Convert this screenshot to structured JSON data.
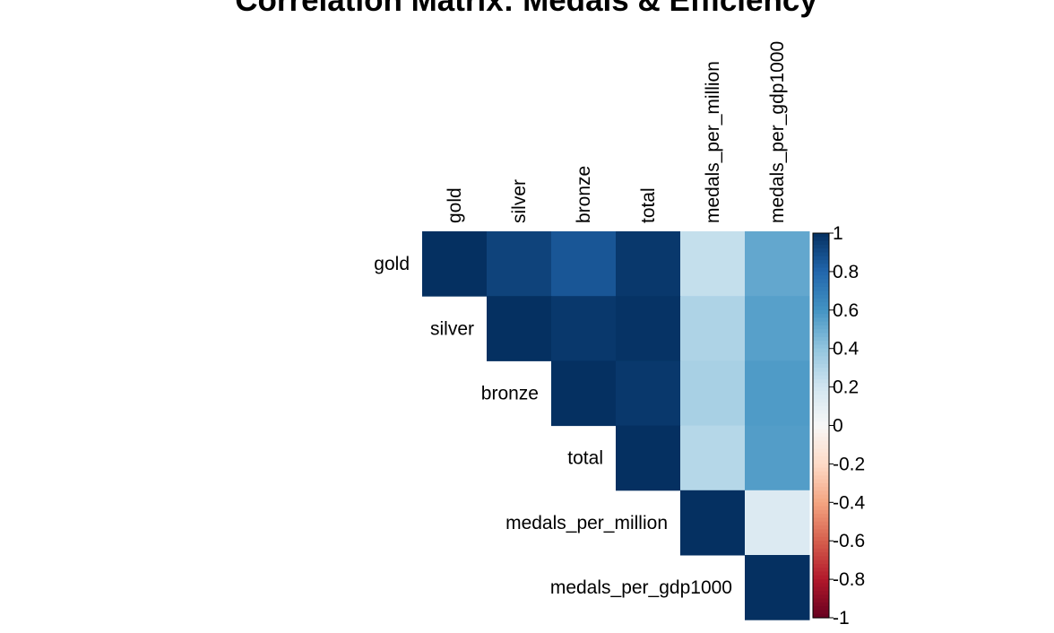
{
  "chart_data": {
    "type": "heatmap",
    "title": "Correlation Matrix: Medals & Efficiency",
    "matrix_shape": "upper-triangle",
    "variables": [
      "gold",
      "silver",
      "bronze",
      "total",
      "medals_per_million",
      "medals_per_gdp1000"
    ],
    "values": [
      [
        1.0,
        0.93,
        0.86,
        0.97,
        0.24,
        0.52
      ],
      [
        0.93,
        1.0,
        0.97,
        0.99,
        0.31,
        0.55
      ],
      [
        0.86,
        0.97,
        1.0,
        0.97,
        0.33,
        0.57
      ],
      [
        0.97,
        0.99,
        0.97,
        1.0,
        0.29,
        0.56
      ],
      [
        0.24,
        0.31,
        0.33,
        0.29,
        1.0,
        0.14
      ],
      [
        0.52,
        0.55,
        0.57,
        0.56,
        0.14,
        1.0
      ]
    ],
    "colorbar": {
      "range": [
        -1,
        1
      ],
      "ticks": [
        "1",
        "0.8",
        "0.6",
        "0.4",
        "0.2",
        "0",
        "-0.2",
        "-0.4",
        "-0.6",
        "-0.8",
        "-1"
      ],
      "colors": {
        "neg": "#67001F",
        "mid": "#F7F7F7",
        "pos": "#053061"
      }
    }
  }
}
